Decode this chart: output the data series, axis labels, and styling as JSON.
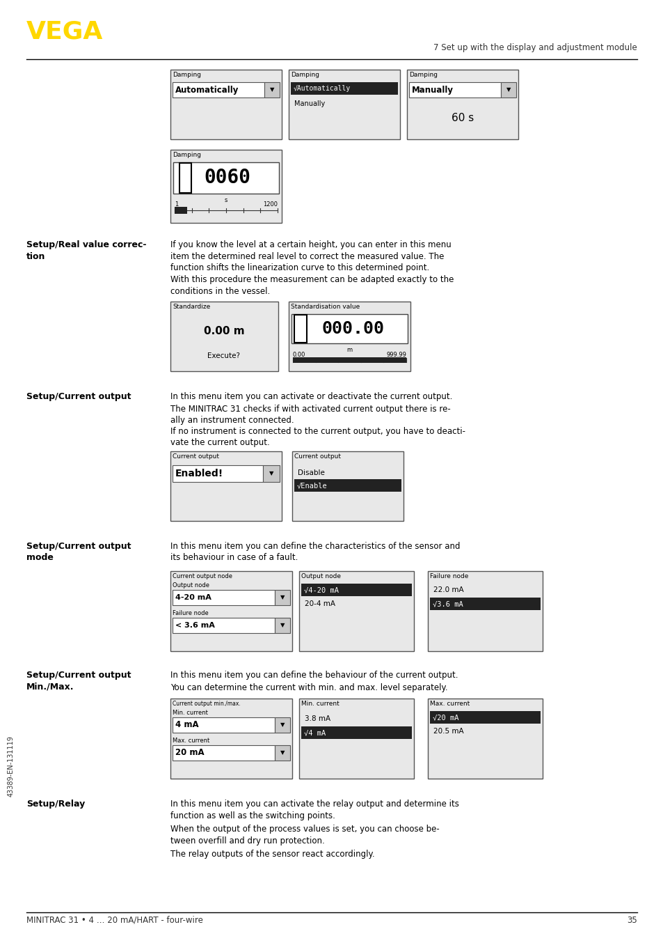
{
  "bg_color": "#ffffff",
  "vega_color": "#FFD700",
  "header_text": "7 Set up with the display and adjustment module",
  "footer_text": "MINITRAC 31 • 4 … 20 mA/HART - four-wire",
  "page_number": "35",
  "side_text": "43389-EN-131119"
}
